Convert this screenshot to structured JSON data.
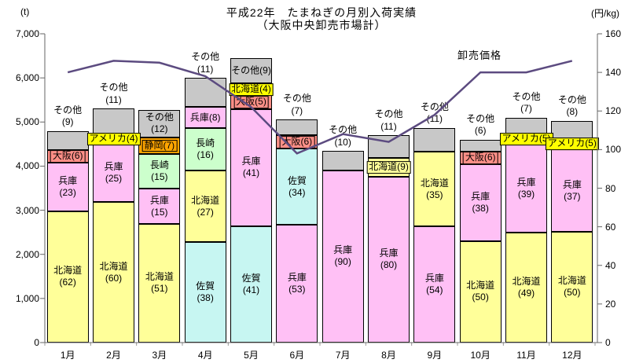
{
  "chart_data": {
    "type": "combo",
    "subtype": "stacked-bar-with-line",
    "title_line1": "平成22年　たまねぎの月別入荷実績",
    "title_line2": "（大阪中央卸売市場計）",
    "unit_left": "(t)",
    "unit_right": "(円/kg)",
    "left_axis": {
      "min": 0,
      "max": 7000,
      "ticks": [
        "7,000",
        "6,000",
        "5,000",
        "4,000",
        "3,000",
        "2,000",
        "1,000",
        "0"
      ]
    },
    "right_axis": {
      "min": 0,
      "max": 160,
      "ticks": [
        "160",
        "140",
        "120",
        "100",
        "80",
        "60",
        "40",
        "20",
        "0"
      ]
    },
    "palette": {
      "hokkaido": "#FFFF99",
      "hyogo": "#FFC0F5",
      "saga": "#C7F6F2",
      "nagasaki": "#CCFFCC",
      "shizuoka": "#FFA500",
      "osaka": "#FF8F87",
      "america": "#FFFF00",
      "bright_yellow": "#FFFF00",
      "sonota": "#C8C8C8"
    },
    "price_line": {
      "name": "卸売価格",
      "color": "#5C4B80",
      "values": [
        140,
        146,
        145,
        138,
        122,
        98,
        108,
        104,
        118,
        140,
        140,
        146
      ]
    },
    "months": [
      {
        "label": "1月",
        "total_t": 4800,
        "segments": [
          {
            "name": "北海道",
            "pct": 62,
            "color": "hokkaido",
            "label": "inside2"
          },
          {
            "name": "兵庫",
            "pct": 23,
            "color": "hyogo",
            "label": "inside2"
          },
          {
            "name": "大阪",
            "pct": 6,
            "color": "osaka",
            "label": "inside1box"
          },
          {
            "name": "その他",
            "pct": 9,
            "color": "sonota",
            "label": "above"
          }
        ]
      },
      {
        "label": "2月",
        "total_t": 5300,
        "segments": [
          {
            "name": "北海道",
            "pct": 60,
            "color": "hokkaido",
            "label": "inside2"
          },
          {
            "name": "兵庫",
            "pct": 25,
            "color": "hyogo",
            "label": "inside2"
          },
          {
            "name": "アメリカ",
            "pct": 4,
            "color": "america",
            "label": "inside1box"
          },
          {
            "name": "その他",
            "pct": 11,
            "color": "sonota",
            "label": "above"
          }
        ]
      },
      {
        "label": "3月",
        "total_t": 5280,
        "segments": [
          {
            "name": "北海道",
            "pct": 51,
            "color": "hokkaido",
            "label": "inside2"
          },
          {
            "name": "兵庫",
            "pct": 15,
            "color": "hyogo",
            "label": "inside2"
          },
          {
            "name": "長崎",
            "pct": 15,
            "color": "nagasaki",
            "label": "inside2"
          },
          {
            "name": "静岡",
            "pct": 7,
            "color": "shizuoka",
            "label": "inside1box"
          },
          {
            "name": "その他",
            "pct": 12,
            "color": "sonota",
            "label": "inside2"
          }
        ]
      },
      {
        "label": "4月",
        "total_t": 6000,
        "segments": [
          {
            "name": "佐賀",
            "pct": 38,
            "color": "saga",
            "label": "inside2"
          },
          {
            "name": "北海道",
            "pct": 27,
            "color": "hokkaido",
            "label": "inside2"
          },
          {
            "name": "長崎",
            "pct": 16,
            "color": "nagasaki",
            "label": "inside2"
          },
          {
            "name": "兵庫",
            "pct": 8,
            "color": "hyogo",
            "label": "inside1"
          },
          {
            "name": "その他",
            "pct": 11,
            "color": "sonota",
            "label": "above"
          }
        ]
      },
      {
        "label": "5月",
        "total_t": 6450,
        "segments": [
          {
            "name": "佐賀",
            "pct": 41,
            "color": "saga",
            "label": "inside2"
          },
          {
            "name": "兵庫",
            "pct": 41,
            "color": "hyogo",
            "label": "inside2"
          },
          {
            "name": "大阪",
            "pct": 5,
            "color": "osaka",
            "label": "inside1box"
          },
          {
            "name": "北海道",
            "pct": 4,
            "color": "bright_yellow",
            "label": "inside1box"
          },
          {
            "name": "その他",
            "pct": 9,
            "color": "sonota",
            "label": "inside1"
          }
        ]
      },
      {
        "label": "6月",
        "total_t": 5050,
        "segments": [
          {
            "name": "兵庫",
            "pct": 53,
            "color": "hyogo",
            "label": "inside2"
          },
          {
            "name": "佐賀",
            "pct": 34,
            "color": "saga",
            "label": "inside2"
          },
          {
            "name": "大阪",
            "pct": 6,
            "color": "osaka",
            "label": "inside1box"
          },
          {
            "name": "その他",
            "pct": 7,
            "color": "sonota",
            "label": "above"
          }
        ]
      },
      {
        "label": "7月",
        "total_t": 4340,
        "segments": [
          {
            "name": "兵庫",
            "pct": 90,
            "color": "hyogo",
            "label": "inside2"
          },
          {
            "name": "その他",
            "pct": 10,
            "color": "sonota",
            "label": "above"
          }
        ]
      },
      {
        "label": "8月",
        "total_t": 4700,
        "segments": [
          {
            "name": "兵庫",
            "pct": 80,
            "color": "hyogo",
            "label": "inside2"
          },
          {
            "name": "北海道",
            "pct": 9,
            "color": "hokkaido",
            "label": "inside1box"
          },
          {
            "name": "その他",
            "pct": 11,
            "color": "sonota",
            "label": "above"
          }
        ]
      },
      {
        "label": "9月",
        "total_t": 4870,
        "segments": [
          {
            "name": "兵庫",
            "pct": 54,
            "color": "hyogo",
            "label": "inside2"
          },
          {
            "name": "北海道",
            "pct": 35,
            "color": "hokkaido",
            "label": "inside2"
          },
          {
            "name": "その他",
            "pct": 11,
            "color": "sonota",
            "label": "above"
          }
        ]
      },
      {
        "label": "10月",
        "total_t": 4600,
        "segments": [
          {
            "name": "北海道",
            "pct": 50,
            "color": "hokkaido",
            "label": "inside2"
          },
          {
            "name": "兵庫",
            "pct": 38,
            "color": "hyogo",
            "label": "inside2"
          },
          {
            "name": "大阪",
            "pct": 6,
            "color": "osaka",
            "label": "inside1box"
          },
          {
            "name": "その他",
            "pct": 6,
            "color": "sonota",
            "label": "above"
          }
        ]
      },
      {
        "label": "11月",
        "total_t": 5100,
        "segments": [
          {
            "name": "北海道",
            "pct": 49,
            "color": "hokkaido",
            "label": "inside2"
          },
          {
            "name": "兵庫",
            "pct": 39,
            "color": "hyogo",
            "label": "inside2"
          },
          {
            "name": "アメリカ",
            "pct": 5,
            "color": "america",
            "label": "inside1box"
          },
          {
            "name": "その他",
            "pct": 7,
            "color": "sonota",
            "label": "above"
          }
        ]
      },
      {
        "label": "12月",
        "total_t": 5030,
        "segments": [
          {
            "name": "北海道",
            "pct": 50,
            "color": "hokkaido",
            "label": "inside2"
          },
          {
            "name": "兵庫",
            "pct": 37,
            "color": "hyogo",
            "label": "inside2"
          },
          {
            "name": "アメリカ",
            "pct": 5,
            "color": "america",
            "label": "inside1box"
          },
          {
            "name": "その他",
            "pct": 8,
            "color": "sonota",
            "label": "above"
          }
        ]
      }
    ]
  }
}
